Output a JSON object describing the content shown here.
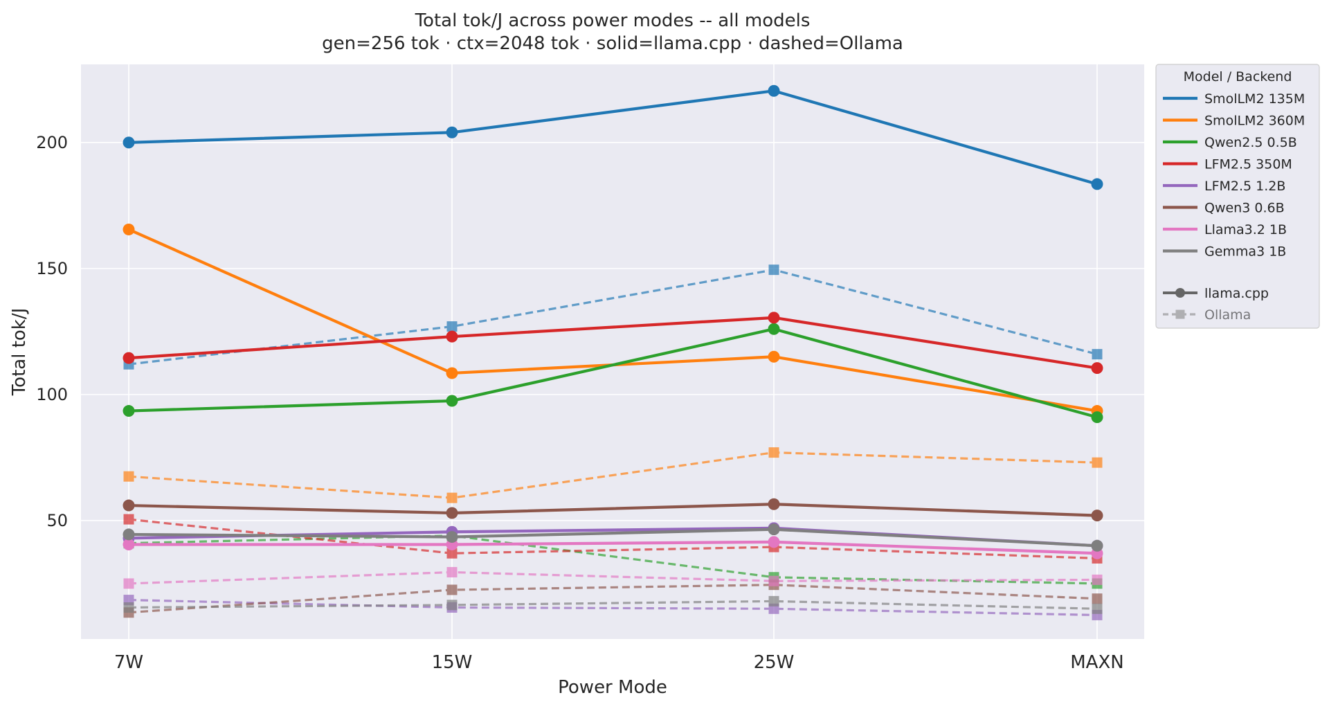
{
  "chart_data": {
    "type": "line",
    "title": "Total tok/J across power modes -- all models",
    "subtitle": "gen=256 tok · ctx=2048 tok · solid=llama.cpp · dashed=Ollama",
    "xlabel": "Power Mode",
    "ylabel": "Total tok/J",
    "categories": [
      "7W",
      "15W",
      "25W",
      "MAXN"
    ],
    "ylim": [
      3,
      231
    ],
    "yticks": [
      50,
      100,
      150,
      200
    ],
    "grid": true,
    "background": "#eaeaf2",
    "legend": {
      "title": "Model  /  Backend",
      "placement": "outside-top-right",
      "backend_items": [
        {
          "label": "llama.cpp",
          "style": "solid-circle"
        },
        {
          "label": "Ollama",
          "style": "dashed-square"
        }
      ]
    },
    "models": [
      {
        "name": "SmolLM2 135M",
        "color": "#1f77b4",
        "llama_cpp": [
          200.0,
          204.0,
          220.5,
          183.5
        ],
        "ollama": [
          112.0,
          127.0,
          149.5,
          116.0
        ]
      },
      {
        "name": "SmolLM2 360M",
        "color": "#ff7f0e",
        "llama_cpp": [
          165.5,
          108.5,
          115.0,
          93.5
        ],
        "ollama": [
          67.5,
          59.0,
          77.0,
          73.0
        ]
      },
      {
        "name": "Qwen2.5 0.5B",
        "color": "#2ca02c",
        "llama_cpp": [
          93.5,
          97.5,
          126.0,
          91.0
        ],
        "ollama": [
          41.0,
          44.0,
          27.5,
          25.0
        ]
      },
      {
        "name": "LFM2.5 350M",
        "color": "#d62728",
        "llama_cpp": [
          114.5,
          123.0,
          130.5,
          110.5
        ],
        "ollama": [
          50.5,
          37.0,
          39.5,
          35.0
        ]
      },
      {
        "name": "LFM2.5 1.2B",
        "color": "#9467bd",
        "llama_cpp": [
          43.0,
          45.5,
          47.0,
          40.0
        ],
        "ollama": [
          18.5,
          15.5,
          15.0,
          12.5
        ]
      },
      {
        "name": "Qwen3 0.6B",
        "color": "#8c564b",
        "llama_cpp": [
          56.0,
          53.0,
          56.5,
          52.0
        ],
        "ollama": [
          13.5,
          22.5,
          24.5,
          19.0
        ]
      },
      {
        "name": "Llama3.2 1B",
        "color": "#e377c2",
        "llama_cpp": [
          40.5,
          40.5,
          41.5,
          37.0
        ],
        "ollama": [
          25.0,
          29.5,
          26.0,
          26.5
        ]
      },
      {
        "name": "Gemma3 1B",
        "color": "#7f7f7f",
        "llama_cpp": [
          44.5,
          43.5,
          46.5,
          40.0
        ],
        "ollama": [
          15.5,
          16.5,
          18.0,
          15.0
        ]
      }
    ]
  }
}
